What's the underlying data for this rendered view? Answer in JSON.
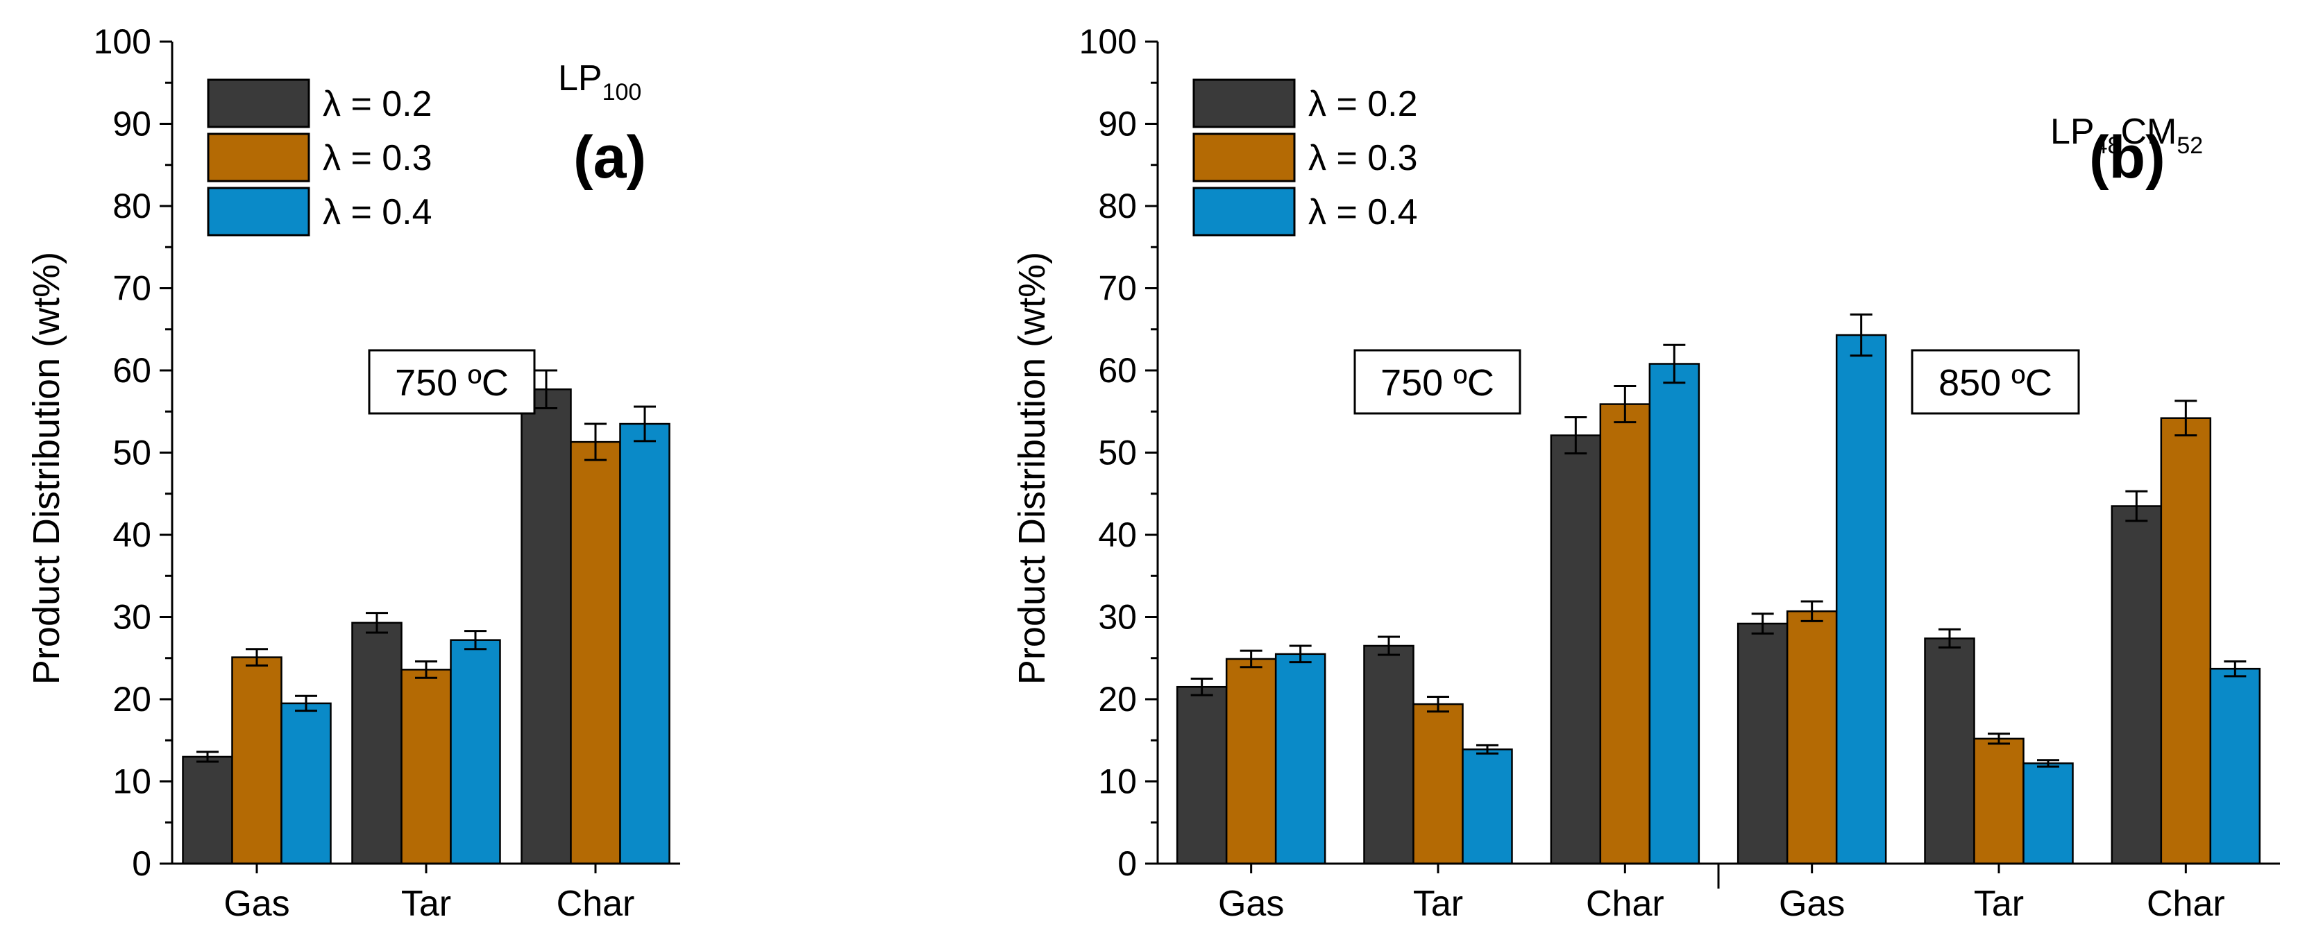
{
  "colors": {
    "series": [
      "#3a3a3a",
      "#b46a04",
      "#0a8ac8"
    ],
    "axis": "#000000",
    "errorbar": "#000000"
  },
  "chart_data": [
    {
      "type": "bar",
      "panel_label": "(a)",
      "title_main": "LP",
      "title_sub": "100",
      "ylabel": "Product Distribution (wt%)",
      "ylim": [
        0,
        100
      ],
      "yticks": [
        0,
        10,
        20,
        30,
        40,
        50,
        60,
        70,
        80,
        90,
        100
      ],
      "legend": {
        "placement": "top-left",
        "entries": [
          "λ = 0.2",
          "λ = 0.3",
          "λ = 0.4"
        ]
      },
      "groups": [
        {
          "temperature_label": "750 ºC",
          "categories": [
            "Gas",
            "Tar",
            "Char"
          ],
          "series": [
            {
              "name": "λ = 0.2",
              "values": [
                13.0,
                29.3,
                57.7
              ],
              "errors": [
                0.6,
                1.2,
                2.3
              ]
            },
            {
              "name": "λ = 0.3",
              "values": [
                25.1,
                23.6,
                51.3
              ],
              "errors": [
                1.0,
                1.0,
                2.2
              ]
            },
            {
              "name": "λ = 0.4",
              "values": [
                19.5,
                27.2,
                53.5
              ],
              "errors": [
                0.9,
                1.1,
                2.1
              ]
            }
          ]
        }
      ]
    },
    {
      "type": "bar",
      "panel_label": "(b)",
      "title_main": "LP",
      "title_sub": "48",
      "title_main2": "CM",
      "title_sub2": "52",
      "ylabel": "Product Distribution (wt%)",
      "ylim": [
        0,
        100
      ],
      "yticks": [
        0,
        10,
        20,
        30,
        40,
        50,
        60,
        70,
        80,
        90,
        100
      ],
      "legend": {
        "placement": "top-left",
        "entries": [
          "λ = 0.2",
          "λ = 0.3",
          "λ = 0.4"
        ]
      },
      "groups": [
        {
          "temperature_label": "750 ºC",
          "categories": [
            "Gas",
            "Tar",
            "Char"
          ],
          "series": [
            {
              "name": "λ = 0.2",
              "values": [
                21.5,
                26.5,
                52.1
              ],
              "errors": [
                1.0,
                1.1,
                2.2
              ]
            },
            {
              "name": "λ = 0.3",
              "values": [
                24.9,
                19.4,
                55.9
              ],
              "errors": [
                1.0,
                0.9,
                2.2
              ]
            },
            {
              "name": "λ = 0.4",
              "values": [
                25.5,
                13.9,
                60.8
              ],
              "errors": [
                1.0,
                0.5,
                2.3
              ]
            }
          ]
        },
        {
          "temperature_label": "850 ºC",
          "categories": [
            "Gas",
            "Tar",
            "Char"
          ],
          "series": [
            {
              "name": "λ = 0.2",
              "values": [
                29.2,
                27.4,
                43.5
              ],
              "errors": [
                1.2,
                1.1,
                1.8
              ]
            },
            {
              "name": "λ = 0.3",
              "values": [
                30.7,
                15.2,
                54.2
              ],
              "errors": [
                1.2,
                0.6,
                2.1
              ]
            },
            {
              "name": "λ = 0.4",
              "values": [
                64.3,
                12.2,
                23.7
              ],
              "errors": [
                2.5,
                0.4,
                0.9
              ]
            }
          ]
        }
      ]
    }
  ]
}
